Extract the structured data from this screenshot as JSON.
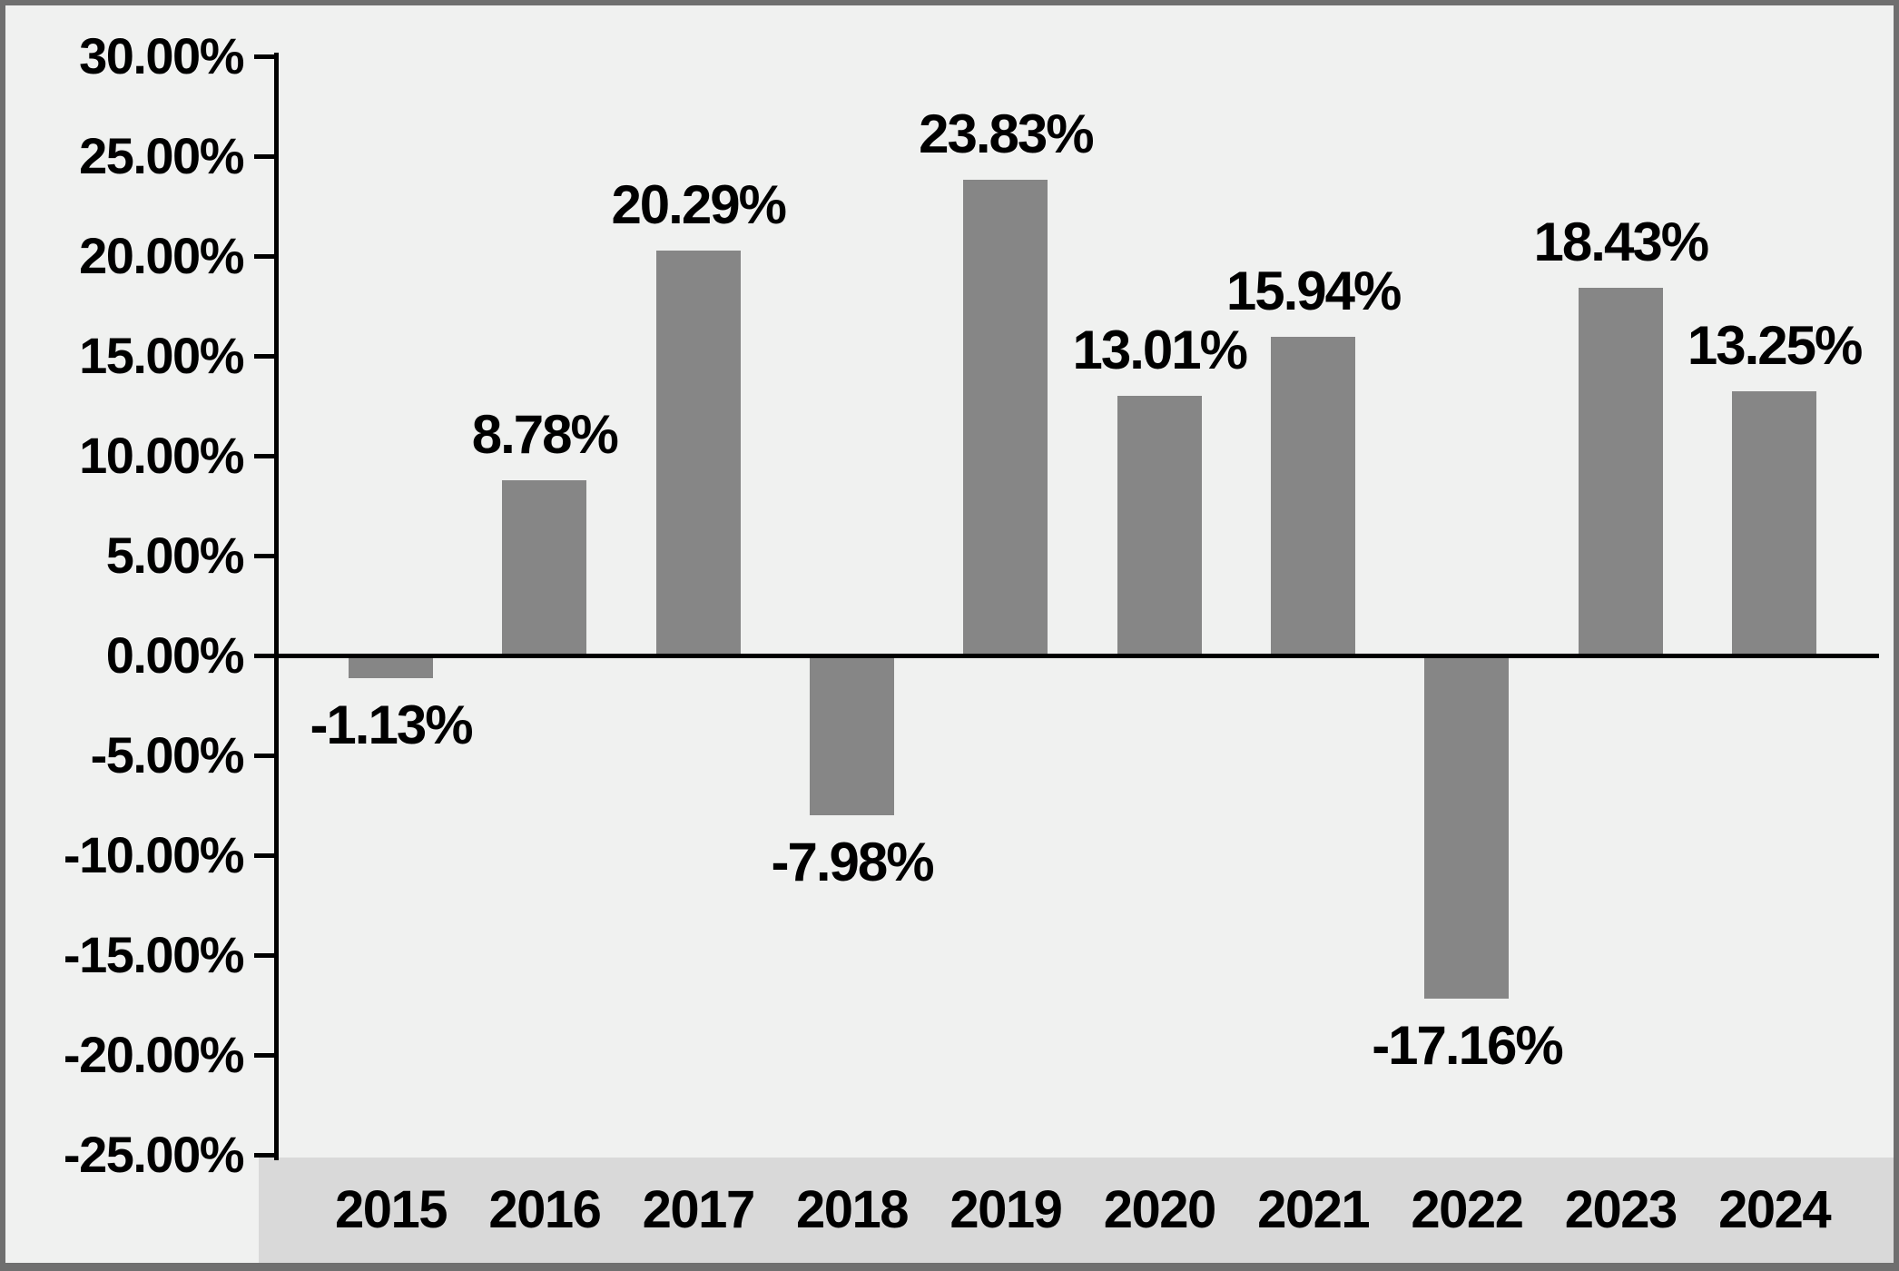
{
  "chart_data": {
    "type": "bar",
    "title": "",
    "categories": [
      "2015",
      "2016",
      "2017",
      "2018",
      "2019",
      "2020",
      "2021",
      "2022",
      "2023",
      "2024"
    ],
    "values": [
      -1.13,
      8.78,
      20.29,
      -7.98,
      23.83,
      13.01,
      15.94,
      -17.16,
      18.43,
      13.25
    ],
    "data_labels": [
      "-1.13%",
      "8.78%",
      "20.29%",
      "-7.98%",
      "23.83%",
      "13.01%",
      "15.94%",
      "-17.16%",
      "18.43%",
      "13.25%"
    ],
    "y_axis": {
      "min": -25,
      "max": 30,
      "step": 5,
      "tick_values": [
        30,
        25,
        20,
        15,
        10,
        5,
        0,
        -5,
        -10,
        -15,
        -20,
        -25
      ],
      "tick_labels": [
        "30.00%",
        "25.00%",
        "20.00%",
        "15.00%",
        "10.00%",
        "5.00%",
        "0.00%",
        "-5.00%",
        "-10.00%",
        "-15.00%",
        "-20.00%",
        "-25.00%"
      ]
    },
    "legend": "none",
    "grid": "off",
    "colors": {
      "bar": "#868686",
      "background": "#f0f1f0",
      "category_strip": "#d9d9d9",
      "axis": "#000000",
      "text": "#000000",
      "frame_border": "#6f6f6f"
    }
  }
}
